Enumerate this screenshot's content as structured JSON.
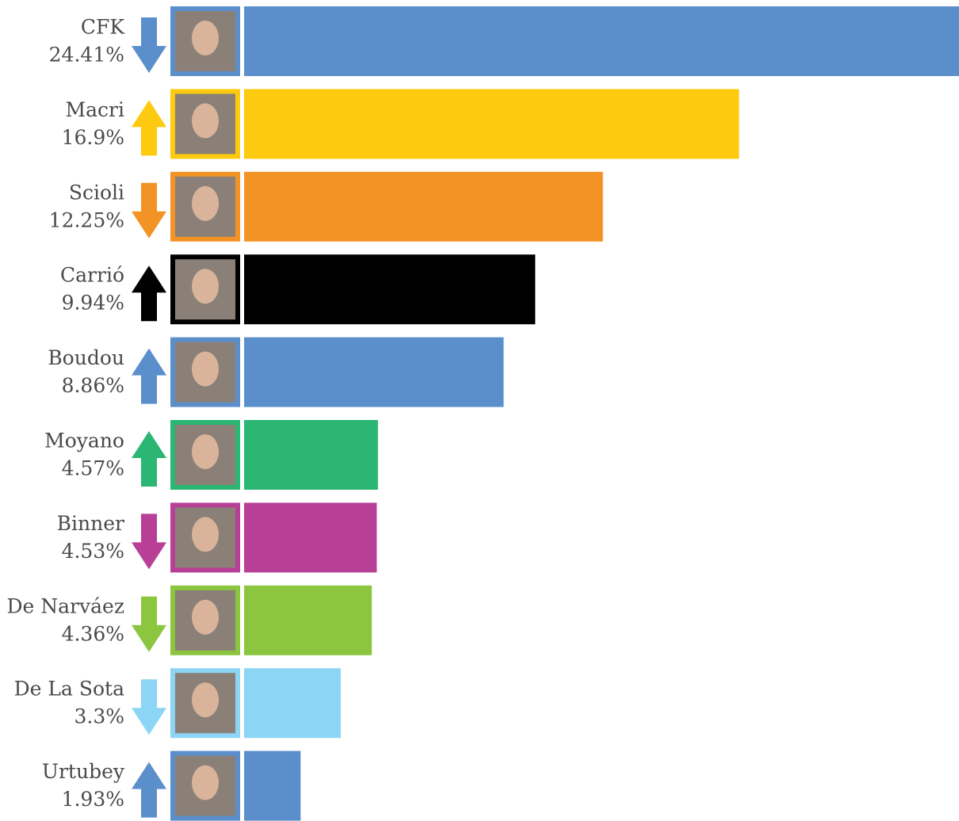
{
  "chart_data": {
    "type": "bar",
    "orientation": "horizontal",
    "categories": [
      "CFK",
      "Macri",
      "Scioli",
      "Carrió",
      "Boudou",
      "Moyano",
      "Binner",
      "De Narváez",
      "De La Sota",
      "Urtubey"
    ],
    "values": [
      24.41,
      16.9,
      12.25,
      9.94,
      8.86,
      4.57,
      4.53,
      4.36,
      3.3,
      1.93
    ],
    "value_labels": [
      "24.41%",
      "16.9%",
      "12.25%",
      "9.94%",
      "8.86%",
      "4.57%",
      "4.53%",
      "4.36%",
      "3.3%",
      "1.93%"
    ],
    "colors": [
      "#5b8fcb",
      "#fdca0f",
      "#f39325",
      "#000000",
      "#5b8fcb",
      "#2bb673",
      "#b73f96",
      "#8cc63f",
      "#8dd5f5",
      "#5b8fcb"
    ],
    "trends": [
      "down",
      "up",
      "down",
      "up",
      "up",
      "up",
      "down",
      "down",
      "down",
      "up"
    ]
  }
}
